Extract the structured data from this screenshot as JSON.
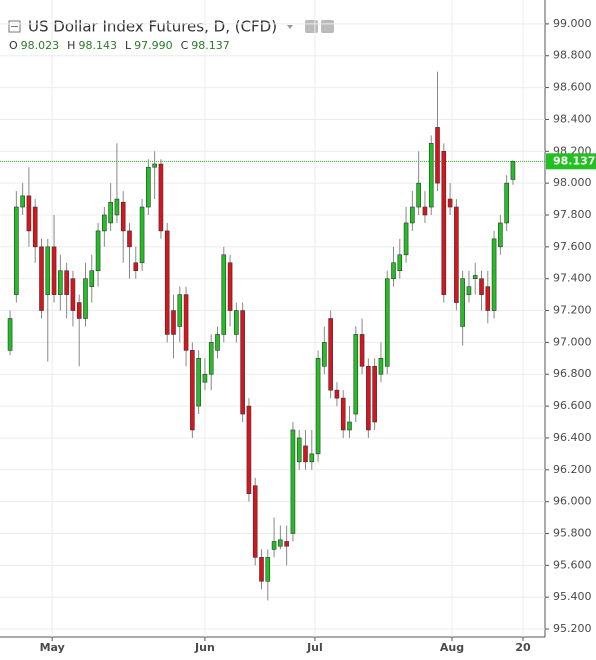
{
  "chart_data": {
    "type": "candlestick",
    "title": "US Dollar Index Futures, D, (CFD)",
    "ohlc_legend": [
      {
        "label": "O",
        "value": "98.023"
      },
      {
        "label": "H",
        "value": "98.143"
      },
      {
        "label": "L",
        "value": "97.990"
      },
      {
        "label": "C",
        "value": "98.137"
      }
    ],
    "open": [
      96.95,
      97.3,
      97.85,
      97.92,
      97.85,
      97.6,
      97.3,
      97.6,
      97.3,
      97.45,
      97.4,
      97.25,
      97.15,
      97.35,
      97.45,
      97.7,
      97.75,
      97.8,
      97.88,
      97.7,
      97.5,
      97.5,
      97.85,
      98.1,
      98.12,
      97.7,
      97.2,
      97.1,
      97.3,
      96.95,
      96.6,
      96.75,
      96.8,
      96.95,
      97.05,
      97.5,
      97.05,
      97.2,
      96.6,
      96.1,
      95.65,
      95.5,
      95.7,
      95.72,
      95.75,
      95.8,
      96.25,
      96.35,
      96.25,
      96.3,
      96.85,
      97.15,
      96.7,
      96.65,
      96.45,
      96.55,
      97.05,
      96.85,
      96.85,
      96.8,
      96.85,
      97.4,
      97.45,
      97.55,
      97.75,
      97.85,
      97.85,
      97.85,
      98.35,
      98.2,
      97.9,
      97.85,
      97.1,
      97.3,
      97.4,
      97.4,
      97.35,
      97.2,
      97.6,
      97.75,
      98.023
    ],
    "high": [
      97.2,
      97.95,
      98.0,
      98.1,
      97.9,
      97.65,
      97.65,
      97.8,
      97.55,
      97.5,
      97.45,
      97.3,
      97.5,
      97.55,
      97.75,
      97.85,
      98.0,
      98.25,
      97.95,
      97.75,
      97.6,
      97.9,
      98.15,
      98.2,
      98.15,
      97.75,
      97.3,
      97.35,
      97.35,
      97.0,
      96.95,
      96.9,
      97.05,
      97.1,
      97.6,
      97.55,
      97.25,
      97.25,
      96.65,
      96.15,
      95.7,
      95.7,
      95.9,
      95.85,
      95.85,
      96.5,
      96.45,
      96.45,
      96.45,
      96.95,
      97.1,
      97.2,
      96.75,
      96.7,
      96.6,
      97.1,
      97.15,
      96.9,
      96.9,
      97.0,
      97.45,
      97.6,
      97.65,
      97.85,
      97.95,
      98.2,
      97.95,
      98.3,
      98.7,
      98.25,
      98.0,
      97.9,
      97.45,
      97.45,
      97.5,
      97.45,
      97.45,
      97.7,
      97.8,
      98.05,
      98.143
    ],
    "low": [
      96.92,
      97.25,
      97.8,
      97.6,
      97.5,
      97.15,
      96.88,
      97.25,
      97.2,
      97.15,
      97.1,
      96.85,
      97.1,
      97.25,
      97.35,
      97.6,
      97.7,
      97.75,
      97.5,
      97.4,
      97.4,
      97.45,
      97.8,
      97.9,
      97.65,
      97.0,
      96.9,
      97.0,
      96.85,
      96.4,
      96.55,
      96.7,
      96.7,
      96.9,
      97.0,
      97.1,
      97.0,
      96.5,
      96.0,
      95.6,
      95.45,
      95.38,
      95.65,
      95.7,
      95.6,
      95.75,
      96.2,
      96.2,
      96.2,
      96.25,
      96.8,
      96.65,
      96.6,
      96.4,
      96.4,
      96.5,
      96.8,
      96.4,
      96.45,
      96.75,
      96.8,
      97.35,
      97.4,
      97.5,
      97.7,
      97.8,
      97.75,
      97.8,
      97.95,
      97.25,
      97.8,
      97.2,
      96.98,
      97.25,
      97.3,
      97.2,
      97.12,
      97.15,
      97.55,
      97.7,
      97.99
    ],
    "close": [
      97.15,
      97.85,
      97.92,
      97.7,
      97.6,
      97.2,
      97.6,
      97.3,
      97.45,
      97.3,
      97.2,
      97.15,
      97.4,
      97.45,
      97.7,
      97.8,
      97.88,
      97.9,
      97.7,
      97.6,
      97.45,
      97.85,
      98.1,
      98.12,
      97.7,
      97.05,
      97.05,
      97.3,
      96.95,
      96.45,
      96.9,
      96.8,
      97.0,
      97.05,
      97.55,
      97.2,
      97.2,
      96.55,
      96.05,
      95.65,
      95.5,
      95.65,
      95.75,
      95.76,
      95.72,
      96.45,
      96.4,
      96.25,
      96.3,
      96.9,
      97.0,
      96.7,
      96.65,
      96.45,
      96.5,
      97.05,
      96.85,
      96.45,
      96.5,
      96.9,
      97.4,
      97.5,
      97.55,
      97.75,
      97.85,
      98.0,
      97.8,
      98.25,
      98.0,
      97.3,
      97.85,
      97.25,
      97.4,
      97.35,
      97.42,
      97.3,
      97.2,
      97.65,
      97.75,
      98.0,
      98.137
    ],
    "up_color": "#22c022",
    "down_color": "#d9141c",
    "ylim": [
      95.15,
      99.15
    ],
    "yticks": [
      {
        "value": 95.2,
        "label": "95.200"
      },
      {
        "value": 95.4,
        "label": "95.400"
      },
      {
        "value": 95.6,
        "label": "95.600"
      },
      {
        "value": 95.8,
        "label": "95.800"
      },
      {
        "value": 96.0,
        "label": "96.000"
      },
      {
        "value": 96.2,
        "label": "96.200"
      },
      {
        "value": 96.4,
        "label": "96.400"
      },
      {
        "value": 96.6,
        "label": "96.600"
      },
      {
        "value": 96.8,
        "label": "96.800"
      },
      {
        "value": 97.0,
        "label": "97.000"
      },
      {
        "value": 97.2,
        "label": "97.200"
      },
      {
        "value": 97.4,
        "label": "97.400"
      },
      {
        "value": 97.6,
        "label": "97.600"
      },
      {
        "value": 97.8,
        "label": "97.800"
      },
      {
        "value": 98.0,
        "label": "98.000"
      },
      {
        "value": 98.2,
        "label": "98.200"
      },
      {
        "value": 98.4,
        "label": "98.400"
      },
      {
        "value": 98.6,
        "label": "98.600"
      },
      {
        "value": 98.8,
        "label": "98.800"
      },
      {
        "value": 99.0,
        "label": "99.000"
      }
    ],
    "xlim": [
      -1.6,
      85.1
    ],
    "xticks": [
      {
        "value": 6.7,
        "label": "May"
      },
      {
        "value": 31,
        "label": "Jun"
      },
      {
        "value": 48.5,
        "label": "Jul"
      },
      {
        "value": 70.3,
        "label": "Aug"
      },
      {
        "value": 81.6,
        "label": "20"
      }
    ],
    "last_price": {
      "value": 98.137,
      "label": "98.137",
      "color": "#22c022"
    },
    "grid": true
  }
}
